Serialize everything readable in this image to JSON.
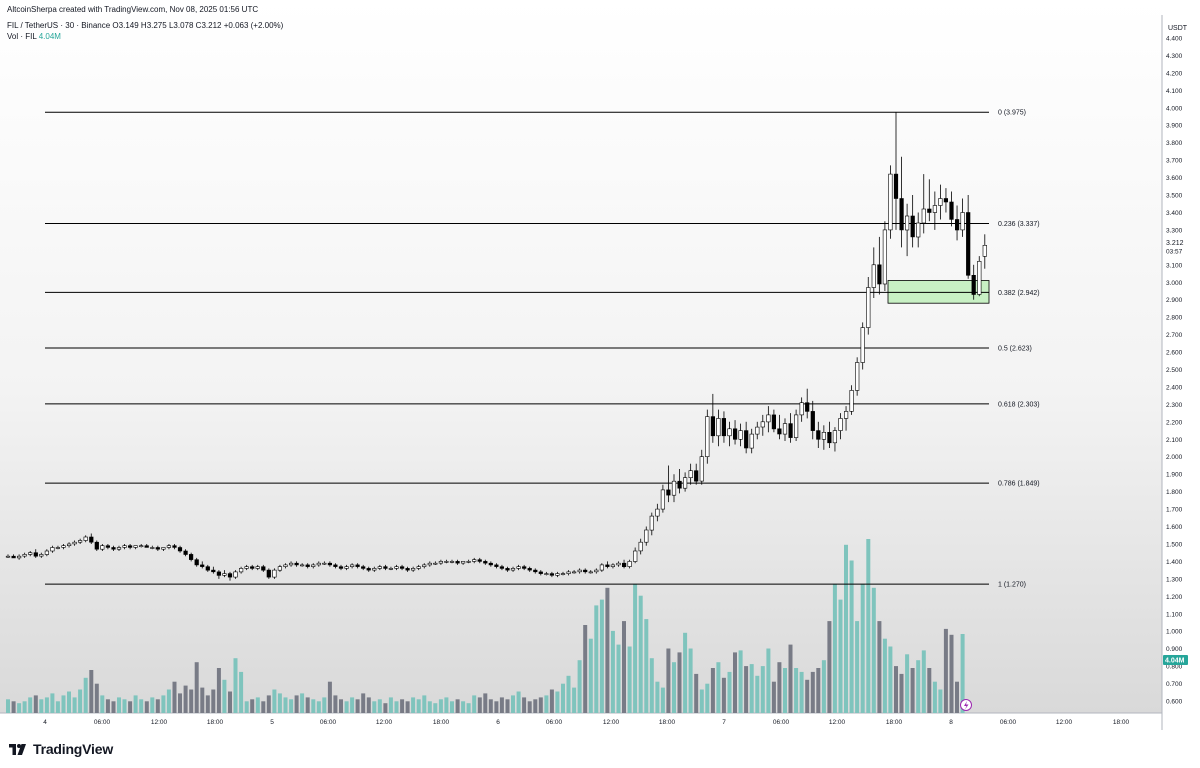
{
  "header": {
    "credit": "AltcoinSherpa created with TradingView.com, Nov 08, 2025 01:56 UTC",
    "symbol": "FIL / TetherUS · 30 · Binance",
    "ohlc": {
      "o_label": "O",
      "o_value": "3.149",
      "h_label": "H",
      "h_value": "3.275",
      "l_label": "L",
      "l_value": "3.078",
      "c_label": "C",
      "c_value": "3.212",
      "change": "+0.063 (+2.00%)"
    },
    "volume_label": "Vol · FIL",
    "volume_value": "4.04M"
  },
  "brand": {
    "name": "TradingView"
  },
  "colors": {
    "up": "#ffffff",
    "down": "#000000",
    "wick": "#000000",
    "vol_up": "#7fc4bd",
    "vol_down": "#787b86",
    "fib_line": "#000000",
    "zone_fill": "#c8f0c4",
    "zone_border": "#000000",
    "axis_text": "#131722",
    "bg_top": "#ffffff",
    "bg_bottom": "#dcdcdc",
    "vol_badge": "#26a69a",
    "price_badge": "#ffffff"
  },
  "chart_data": {
    "type": "candlestick",
    "symbol": "FIL / TetherUS",
    "interval": "30",
    "exchange": "Binance",
    "price_axis": {
      "currency": "USDT",
      "ticks": [
        "0.600",
        "0.700",
        "0.800",
        "0.900",
        "1.000",
        "1.100",
        "1.200",
        "1.300",
        "1.400",
        "1.500",
        "1.600",
        "1.700",
        "1.800",
        "1.900",
        "2.000",
        "2.100",
        "2.200",
        "2.300",
        "2.400",
        "2.500",
        "2.600",
        "2.700",
        "2.800",
        "2.900",
        "3.000",
        "3.100",
        "3.200",
        "3.300",
        "3.400",
        "3.500",
        "3.600",
        "3.700",
        "3.800",
        "3.900",
        "4.000",
        "4.100",
        "4.200",
        "4.300",
        "4.400"
      ],
      "last_price": "3.212",
      "countdown": "03:57",
      "volume_badge": "4.04M"
    },
    "time_axis": {
      "labels": [
        "4",
        "06:00",
        "12:00",
        "18:00",
        "5",
        "06:00",
        "12:00",
        "18:00",
        "6",
        "06:00",
        "12:00",
        "18:00",
        "7",
        "06:00",
        "12:00",
        "18:00",
        "8",
        "06:00",
        "12:00",
        "18:00"
      ]
    },
    "fibonacci": [
      {
        "level": "0",
        "price": 3.975,
        "label": "0 (3.975)"
      },
      {
        "level": "0.236",
        "price": 3.337,
        "label": "0.236 (3.337)"
      },
      {
        "level": "0.382",
        "price": 2.942,
        "label": "0.382 (2.942)"
      },
      {
        "level": "0.5",
        "price": 2.623,
        "label": "0.5 (2.623)"
      },
      {
        "level": "0.618",
        "price": 2.303,
        "label": "0.618 (2.303)"
      },
      {
        "level": "0.786",
        "price": 1.849,
        "label": "0.786 (1.849)"
      },
      {
        "level": "1",
        "price": 1.27,
        "label": "1 (1.270)"
      }
    ],
    "zone": {
      "top": 3.01,
      "bottom": 2.88
    },
    "candles": [
      [
        1.43,
        1.44,
        1.42,
        1.43
      ],
      [
        1.43,
        1.44,
        1.42,
        1.42
      ],
      [
        1.42,
        1.44,
        1.41,
        1.43
      ],
      [
        1.43,
        1.45,
        1.42,
        1.44
      ],
      [
        1.44,
        1.46,
        1.43,
        1.45
      ],
      [
        1.45,
        1.47,
        1.42,
        1.43
      ],
      [
        1.43,
        1.45,
        1.42,
        1.44
      ],
      [
        1.44,
        1.47,
        1.43,
        1.46
      ],
      [
        1.46,
        1.49,
        1.45,
        1.48
      ],
      [
        1.48,
        1.49,
        1.47,
        1.48
      ],
      [
        1.48,
        1.5,
        1.47,
        1.49
      ],
      [
        1.49,
        1.51,
        1.48,
        1.5
      ],
      [
        1.5,
        1.52,
        1.49,
        1.51
      ],
      [
        1.51,
        1.53,
        1.5,
        1.52
      ],
      [
        1.52,
        1.55,
        1.51,
        1.54
      ],
      [
        1.54,
        1.56,
        1.5,
        1.51
      ],
      [
        1.51,
        1.52,
        1.46,
        1.47
      ],
      [
        1.47,
        1.5,
        1.46,
        1.49
      ],
      [
        1.49,
        1.5,
        1.47,
        1.48
      ],
      [
        1.48,
        1.49,
        1.46,
        1.47
      ],
      [
        1.47,
        1.49,
        1.46,
        1.48
      ],
      [
        1.48,
        1.5,
        1.47,
        1.49
      ],
      [
        1.49,
        1.5,
        1.47,
        1.48
      ],
      [
        1.48,
        1.49,
        1.47,
        1.49
      ],
      [
        1.49,
        1.5,
        1.48,
        1.49
      ],
      [
        1.49,
        1.5,
        1.48,
        1.48
      ],
      [
        1.48,
        1.49,
        1.47,
        1.48
      ],
      [
        1.48,
        1.49,
        1.46,
        1.47
      ],
      [
        1.47,
        1.48,
        1.46,
        1.48
      ],
      [
        1.48,
        1.5,
        1.47,
        1.49
      ],
      [
        1.49,
        1.5,
        1.47,
        1.48
      ],
      [
        1.48,
        1.49,
        1.45,
        1.46
      ],
      [
        1.46,
        1.47,
        1.43,
        1.44
      ],
      [
        1.44,
        1.45,
        1.4,
        1.41
      ],
      [
        1.41,
        1.42,
        1.37,
        1.38
      ],
      [
        1.38,
        1.4,
        1.36,
        1.37
      ],
      [
        1.37,
        1.38,
        1.34,
        1.35
      ],
      [
        1.35,
        1.37,
        1.33,
        1.34
      ],
      [
        1.34,
        1.35,
        1.3,
        1.32
      ],
      [
        1.32,
        1.35,
        1.31,
        1.33
      ],
      [
        1.33,
        1.34,
        1.29,
        1.31
      ],
      [
        1.31,
        1.35,
        1.3,
        1.34
      ],
      [
        1.34,
        1.37,
        1.33,
        1.36
      ],
      [
        1.36,
        1.38,
        1.35,
        1.37
      ],
      [
        1.37,
        1.38,
        1.35,
        1.36
      ],
      [
        1.36,
        1.38,
        1.35,
        1.37
      ],
      [
        1.37,
        1.38,
        1.34,
        1.35
      ],
      [
        1.35,
        1.36,
        1.3,
        1.31
      ],
      [
        1.31,
        1.36,
        1.3,
        1.35
      ],
      [
        1.35,
        1.38,
        1.34,
        1.37
      ],
      [
        1.37,
        1.39,
        1.36,
        1.38
      ],
      [
        1.38,
        1.4,
        1.37,
        1.39
      ],
      [
        1.39,
        1.4,
        1.37,
        1.38
      ],
      [
        1.38,
        1.39,
        1.37,
        1.38
      ],
      [
        1.38,
        1.39,
        1.36,
        1.37
      ],
      [
        1.37,
        1.39,
        1.36,
        1.38
      ],
      [
        1.38,
        1.4,
        1.37,
        1.39
      ],
      [
        1.39,
        1.4,
        1.38,
        1.39
      ],
      [
        1.39,
        1.4,
        1.37,
        1.38
      ],
      [
        1.38,
        1.39,
        1.36,
        1.37
      ],
      [
        1.37,
        1.38,
        1.35,
        1.36
      ],
      [
        1.36,
        1.38,
        1.35,
        1.37
      ],
      [
        1.37,
        1.39,
        1.36,
        1.38
      ],
      [
        1.38,
        1.39,
        1.36,
        1.37
      ],
      [
        1.37,
        1.38,
        1.35,
        1.36
      ],
      [
        1.36,
        1.37,
        1.34,
        1.35
      ],
      [
        1.35,
        1.37,
        1.34,
        1.36
      ],
      [
        1.36,
        1.38,
        1.35,
        1.37
      ],
      [
        1.37,
        1.38,
        1.35,
        1.36
      ],
      [
        1.36,
        1.37,
        1.35,
        1.36
      ],
      [
        1.36,
        1.38,
        1.35,
        1.37
      ],
      [
        1.37,
        1.38,
        1.35,
        1.36
      ],
      [
        1.36,
        1.37,
        1.34,
        1.35
      ],
      [
        1.35,
        1.37,
        1.34,
        1.36
      ],
      [
        1.36,
        1.38,
        1.35,
        1.37
      ],
      [
        1.37,
        1.39,
        1.36,
        1.38
      ],
      [
        1.38,
        1.4,
        1.37,
        1.39
      ],
      [
        1.39,
        1.4,
        1.38,
        1.39
      ],
      [
        1.39,
        1.41,
        1.38,
        1.4
      ],
      [
        1.4,
        1.41,
        1.39,
        1.4
      ],
      [
        1.4,
        1.41,
        1.39,
        1.4
      ],
      [
        1.4,
        1.41,
        1.38,
        1.39
      ],
      [
        1.39,
        1.4,
        1.38,
        1.4
      ],
      [
        1.4,
        1.41,
        1.39,
        1.4
      ],
      [
        1.4,
        1.42,
        1.39,
        1.41
      ],
      [
        1.41,
        1.42,
        1.39,
        1.4
      ],
      [
        1.4,
        1.41,
        1.38,
        1.39
      ],
      [
        1.39,
        1.4,
        1.37,
        1.38
      ],
      [
        1.38,
        1.39,
        1.36,
        1.37
      ],
      [
        1.37,
        1.38,
        1.35,
        1.36
      ],
      [
        1.36,
        1.37,
        1.34,
        1.35
      ],
      [
        1.35,
        1.37,
        1.34,
        1.36
      ],
      [
        1.36,
        1.38,
        1.35,
        1.37
      ],
      [
        1.37,
        1.38,
        1.35,
        1.36
      ],
      [
        1.36,
        1.37,
        1.34,
        1.35
      ],
      [
        1.35,
        1.36,
        1.33,
        1.34
      ],
      [
        1.34,
        1.35,
        1.32,
        1.33
      ],
      [
        1.33,
        1.34,
        1.32,
        1.33
      ],
      [
        1.33,
        1.34,
        1.31,
        1.32
      ],
      [
        1.32,
        1.34,
        1.31,
        1.33
      ],
      [
        1.33,
        1.34,
        1.32,
        1.33
      ],
      [
        1.33,
        1.35,
        1.32,
        1.34
      ],
      [
        1.34,
        1.35,
        1.33,
        1.34
      ],
      [
        1.34,
        1.36,
        1.33,
        1.35
      ],
      [
        1.35,
        1.36,
        1.33,
        1.34
      ],
      [
        1.34,
        1.35,
        1.33,
        1.34
      ],
      [
        1.34,
        1.36,
        1.33,
        1.35
      ],
      [
        1.35,
        1.39,
        1.34,
        1.38
      ],
      [
        1.38,
        1.4,
        1.36,
        1.37
      ],
      [
        1.37,
        1.39,
        1.36,
        1.38
      ],
      [
        1.38,
        1.4,
        1.37,
        1.39
      ],
      [
        1.39,
        1.41,
        1.36,
        1.37
      ],
      [
        1.37,
        1.41,
        1.36,
        1.4
      ],
      [
        1.4,
        1.48,
        1.39,
        1.46
      ],
      [
        1.46,
        1.53,
        1.44,
        1.51
      ],
      [
        1.51,
        1.6,
        1.49,
        1.58
      ],
      [
        1.58,
        1.68,
        1.55,
        1.66
      ],
      [
        1.66,
        1.73,
        1.63,
        1.7
      ],
      [
        1.7,
        1.84,
        1.68,
        1.81
      ],
      [
        1.81,
        1.95,
        1.74,
        1.78
      ],
      [
        1.78,
        1.9,
        1.74,
        1.86
      ],
      [
        1.86,
        1.93,
        1.79,
        1.82
      ],
      [
        1.82,
        1.91,
        1.8,
        1.88
      ],
      [
        1.88,
        1.96,
        1.84,
        1.92
      ],
      [
        1.92,
        1.96,
        1.84,
        1.86
      ],
      [
        1.86,
        2.04,
        1.84,
        2.0
      ],
      [
        2.0,
        2.27,
        1.96,
        2.23
      ],
      [
        2.23,
        2.36,
        2.08,
        2.12
      ],
      [
        2.12,
        2.27,
        2.06,
        2.22
      ],
      [
        2.22,
        2.26,
        2.08,
        2.12
      ],
      [
        2.12,
        2.2,
        2.06,
        2.16
      ],
      [
        2.16,
        2.21,
        2.07,
        2.1
      ],
      [
        2.1,
        2.19,
        2.06,
        2.15
      ],
      [
        2.15,
        2.2,
        2.02,
        2.05
      ],
      [
        2.05,
        2.16,
        2.02,
        2.13
      ],
      [
        2.13,
        2.2,
        2.1,
        2.17
      ],
      [
        2.17,
        2.24,
        2.12,
        2.2
      ],
      [
        2.2,
        2.29,
        2.14,
        2.24
      ],
      [
        2.24,
        2.27,
        2.14,
        2.16
      ],
      [
        2.16,
        2.24,
        2.1,
        2.13
      ],
      [
        2.13,
        2.22,
        2.09,
        2.19
      ],
      [
        2.19,
        2.25,
        2.08,
        2.11
      ],
      [
        2.11,
        2.27,
        2.09,
        2.24
      ],
      [
        2.24,
        2.34,
        2.2,
        2.31
      ],
      [
        2.31,
        2.39,
        2.22,
        2.26
      ],
      [
        2.26,
        2.32,
        2.1,
        2.15
      ],
      [
        2.15,
        2.2,
        2.05,
        2.1
      ],
      [
        2.1,
        2.18,
        2.04,
        2.14
      ],
      [
        2.14,
        2.2,
        2.05,
        2.08
      ],
      [
        2.08,
        2.17,
        2.03,
        2.15
      ],
      [
        2.15,
        2.25,
        2.1,
        2.22
      ],
      [
        2.22,
        2.29,
        2.15,
        2.26
      ],
      [
        2.26,
        2.41,
        2.24,
        2.38
      ],
      [
        2.38,
        2.57,
        2.35,
        2.54
      ],
      [
        2.54,
        2.77,
        2.5,
        2.74
      ],
      [
        2.74,
        3.03,
        2.7,
        2.97
      ],
      [
        2.97,
        3.2,
        2.91,
        3.1
      ],
      [
        3.1,
        3.26,
        2.93,
        2.99
      ],
      [
        2.99,
        3.35,
        2.95,
        3.3
      ],
      [
        3.3,
        3.67,
        3.25,
        3.62
      ],
      [
        3.62,
        3.975,
        3.3,
        3.48
      ],
      [
        3.48,
        3.72,
        3.2,
        3.3
      ],
      [
        3.3,
        3.45,
        3.15,
        3.38
      ],
      [
        3.38,
        3.5,
        3.2,
        3.26
      ],
      [
        3.26,
        3.4,
        3.2,
        3.34
      ],
      [
        3.34,
        3.62,
        3.28,
        3.42
      ],
      [
        3.42,
        3.59,
        3.35,
        3.4
      ],
      [
        3.4,
        3.52,
        3.3,
        3.44
      ],
      [
        3.44,
        3.56,
        3.36,
        3.48
      ],
      [
        3.48,
        3.54,
        3.4,
        3.46
      ],
      [
        3.46,
        3.52,
        3.32,
        3.36
      ],
      [
        3.36,
        3.44,
        3.24,
        3.3
      ],
      [
        3.3,
        3.48,
        3.26,
        3.4
      ],
      [
        3.4,
        3.5,
        3.02,
        3.04
      ],
      [
        3.04,
        3.1,
        2.9,
        2.93
      ],
      [
        2.93,
        3.15,
        2.92,
        3.12
      ],
      [
        3.149,
        3.275,
        3.078,
        3.212
      ]
    ],
    "volumes_m": [
      0.7,
      0.6,
      0.5,
      0.6,
      0.8,
      0.9,
      0.7,
      0.8,
      1.0,
      0.6,
      0.9,
      1.1,
      0.8,
      1.2,
      1.8,
      2.2,
      1.5,
      0.9,
      0.7,
      0.6,
      0.8,
      0.7,
      0.6,
      0.9,
      0.7,
      0.6,
      0.8,
      0.7,
      0.9,
      1.2,
      1.6,
      1.0,
      1.4,
      1.2,
      2.6,
      1.3,
      0.9,
      1.2,
      2.3,
      1.7,
      1.1,
      2.8,
      2.1,
      0.6,
      0.7,
      0.8,
      0.6,
      0.9,
      1.2,
      1.0,
      0.8,
      0.7,
      0.9,
      1.0,
      0.8,
      0.7,
      0.6,
      0.8,
      1.6,
      0.9,
      0.7,
      0.6,
      0.8,
      0.7,
      1.0,
      0.8,
      0.6,
      0.7,
      0.5,
      0.8,
      0.6,
      0.7,
      0.6,
      0.8,
      0.7,
      0.9,
      0.6,
      0.5,
      0.7,
      0.8,
      0.6,
      0.7,
      0.6,
      0.5,
      0.9,
      0.8,
      1.0,
      0.7,
      0.6,
      0.8,
      0.7,
      0.9,
      1.1,
      0.8,
      0.6,
      0.7,
      0.8,
      0.9,
      1.2,
      1.1,
      1.5,
      1.9,
      1.3,
      2.7,
      4.5,
      3.8,
      5.5,
      5.8,
      6.4,
      4.2,
      3.5,
      4.7,
      3.4,
      6.6,
      6.0,
      4.8,
      2.8,
      1.6,
      1.3,
      3.3,
      2.6,
      3.1,
      4.1,
      3.3,
      2.0,
      1.2,
      1.5,
      2.3,
      2.6,
      1.8,
      2.1,
      3.1,
      3.2,
      2.4,
      2.5,
      1.9,
      2.4,
      3.3,
      1.6,
      2.6,
      2.3,
      3.5,
      2.3,
      2.1,
      1.7,
      2.1,
      2.3,
      2.7,
      4.7,
      6.6,
      5.8,
      8.6,
      7.8,
      4.7,
      6.6,
      8.9,
      6.4,
      4.7,
      3.8,
      3.4,
      2.4,
      2.0,
      3.0,
      2.3,
      2.7,
      3.2,
      2.3,
      1.6,
      1.2,
      4.3,
      4.0,
      1.6,
      4.04
    ]
  }
}
